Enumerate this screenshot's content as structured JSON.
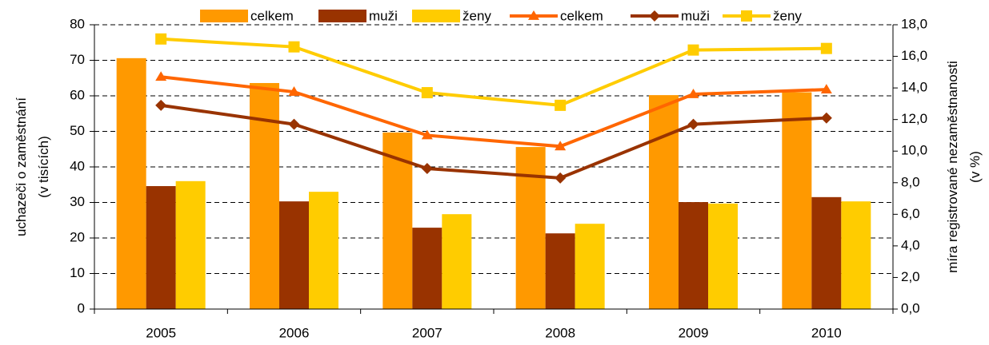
{
  "chart_data": {
    "type": "bar",
    "categories": [
      "2005",
      "2006",
      "2007",
      "2008",
      "2009",
      "2010"
    ],
    "ylabel": [
      "uchazeči o zaměstnání",
      "(v tisících)"
    ],
    "y2label": [
      "míra registrované nezaměstnanosti",
      "(v %)"
    ],
    "ylim": [
      0,
      80
    ],
    "yticks": [
      0,
      10,
      20,
      30,
      40,
      50,
      60,
      70,
      80
    ],
    "y2lim": [
      0,
      18
    ],
    "y2ticks": [
      {
        "value": 0,
        "label": "0,0"
      },
      {
        "value": 2,
        "label": "2,0"
      },
      {
        "value": 4,
        "label": "4,0"
      },
      {
        "value": 6,
        "label": "6,0"
      },
      {
        "value": 8,
        "label": "8,0"
      },
      {
        "value": 10,
        "label": "10,0"
      },
      {
        "value": 12,
        "label": "12,0"
      },
      {
        "value": 14,
        "label": "14,0"
      },
      {
        "value": 16,
        "label": "16,0"
      },
      {
        "value": 18,
        "label": "18,0"
      }
    ],
    "grid": true,
    "legend": "top",
    "series": [
      {
        "name": "celkem",
        "type": "bar",
        "color": "#ff9900",
        "values": [
          70.6,
          63.6,
          49.7,
          45.6,
          60.2,
          61.0
        ]
      },
      {
        "name": "muži",
        "type": "bar",
        "color": "#993300",
        "values": [
          34.6,
          30.3,
          22.9,
          21.3,
          30.1,
          31.5
        ]
      },
      {
        "name": "ženy",
        "type": "bar",
        "color": "#ffcc00",
        "values": [
          36.0,
          33.0,
          26.7,
          24.0,
          29.7,
          30.3
        ]
      },
      {
        "name": "celkem",
        "type": "line",
        "axis": "y2",
        "marker": "triangle",
        "color": "#ff6600",
        "values": [
          14.7,
          13.75,
          11.0,
          10.3,
          13.6,
          13.9
        ]
      },
      {
        "name": "muži",
        "type": "line",
        "axis": "y2",
        "marker": "diamond",
        "color": "#993300",
        "values": [
          12.9,
          11.7,
          8.9,
          8.3,
          11.7,
          12.1
        ]
      },
      {
        "name": "ženy",
        "type": "line",
        "axis": "y2",
        "marker": "square",
        "color": "#ffcc00",
        "values": [
          17.1,
          16.6,
          13.7,
          12.9,
          16.4,
          16.5
        ]
      }
    ]
  }
}
